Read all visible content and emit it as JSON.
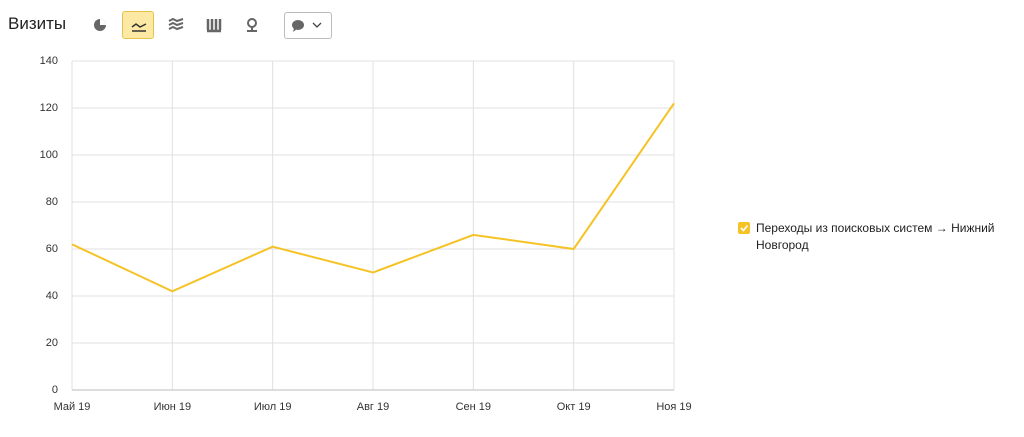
{
  "chart_data": {
    "type": "line",
    "title": "Визиты",
    "categories": [
      "Май 19",
      "Июн 19",
      "Июл 19",
      "Авг 19",
      "Сен 19",
      "Окт 19",
      "Ноя 19"
    ],
    "series": [
      {
        "name": "Переходы из поисковых систем → Нижний Новгород",
        "color": "#f5c326",
        "values": [
          62,
          42,
          61,
          50,
          66,
          60,
          122
        ]
      }
    ],
    "ylim": [
      0,
      140
    ],
    "yticks": [
      0,
      20,
      40,
      60,
      80,
      100,
      120,
      140
    ],
    "grid": true,
    "legend": "right"
  }
}
